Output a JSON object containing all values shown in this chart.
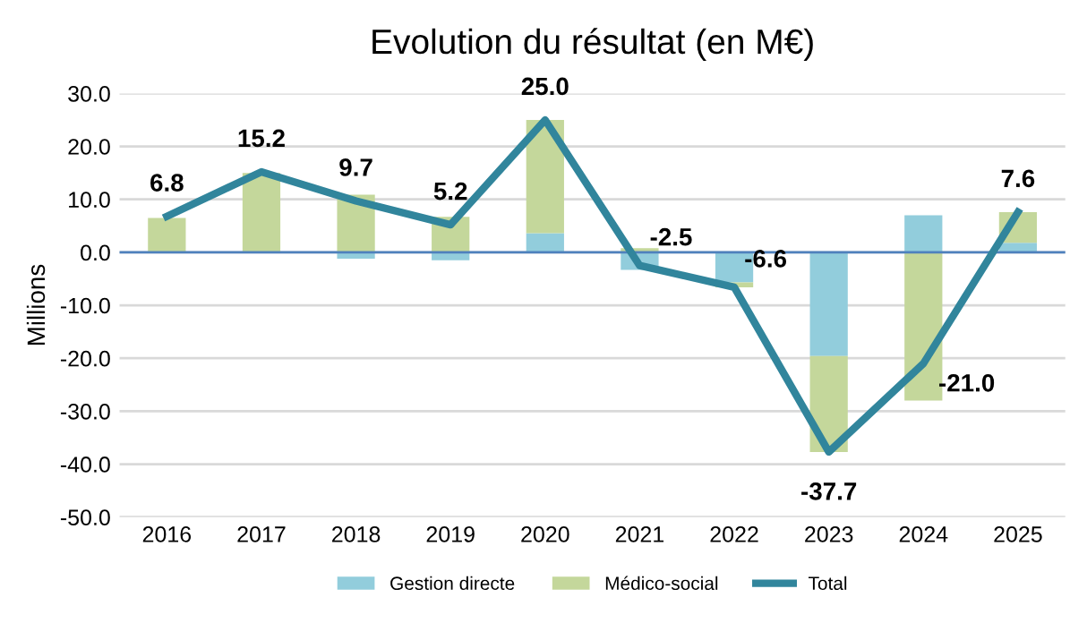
{
  "chart_data": {
    "type": "bar",
    "stacked": true,
    "title": "Evolution du résultat (en M€)",
    "ylabel": "Millions",
    "categories": [
      "2016",
      "2017",
      "2018",
      "2019",
      "2020",
      "2021",
      "2022",
      "2023",
      "2024",
      "2025"
    ],
    "series": [
      {
        "name": "Gestion directe",
        "color": "#92cddc",
        "values": [
          null,
          null,
          -1.2,
          -1.5,
          3.6,
          -3.3,
          -5.7,
          -19.6,
          7.0,
          1.8
        ]
      },
      {
        "name": "Médico-social",
        "color": "#c4d79b",
        "values": [
          6.5,
          15.0,
          10.9,
          6.7,
          21.4,
          0.8,
          -0.9,
          -18.1,
          -28.0,
          5.8
        ]
      },
      {
        "name": "Total",
        "type": "line",
        "color": "#31859c",
        "values": [
          6.8,
          15.2,
          9.7,
          5.2,
          25.0,
          -2.5,
          -6.6,
          -37.7,
          -21.0,
          7.6
        ],
        "value_labels": [
          "6.8",
          "15.2",
          "9.7",
          "5.2",
          "25.0",
          "-2.5",
          "-6.6",
          "-37.7",
          "-21.0",
          "7.6"
        ]
      }
    ],
    "ylim": [
      -50,
      30
    ],
    "yticks": [
      {
        "value": -50,
        "label": "-50.0"
      },
      {
        "value": -40,
        "label": "-40.0"
      },
      {
        "value": -30,
        "label": "-30.0"
      },
      {
        "value": -20,
        "label": "-20.0"
      },
      {
        "value": -10,
        "label": "-10.0"
      },
      {
        "value": 0,
        "label": "0.0"
      },
      {
        "value": 10,
        "label": "10.0"
      },
      {
        "value": 20,
        "label": "20.0"
      },
      {
        "value": 30,
        "label": "30.0"
      }
    ],
    "ref_lines": [
      {
        "axis": "y",
        "value": 0,
        "color": "#4f81bd",
        "line_style": "solid"
      }
    ],
    "grid": "y",
    "legend": "bottom",
    "marker": "none",
    "line_style": "solid"
  }
}
